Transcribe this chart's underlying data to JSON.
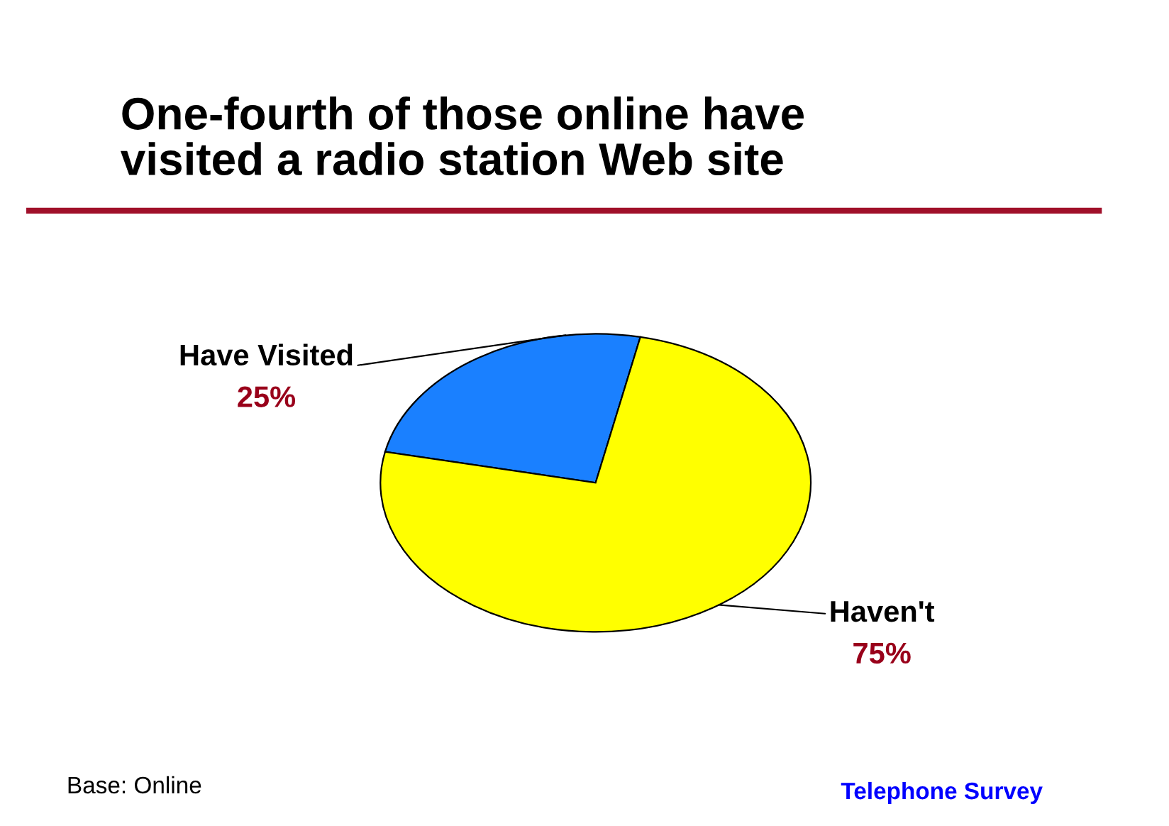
{
  "chart_data": {
    "type": "pie",
    "title": "One-fourth of those online have\nvisited a radio station Web site",
    "categories": [
      "Have Visited",
      "Haven't"
    ],
    "values": [
      25,
      75
    ],
    "value_labels": [
      "25%",
      "75%"
    ],
    "colors": [
      "#1a80ff",
      "#ffff00"
    ],
    "annotations": [
      "Base: Online",
      "Telephone Survey"
    ]
  }
}
